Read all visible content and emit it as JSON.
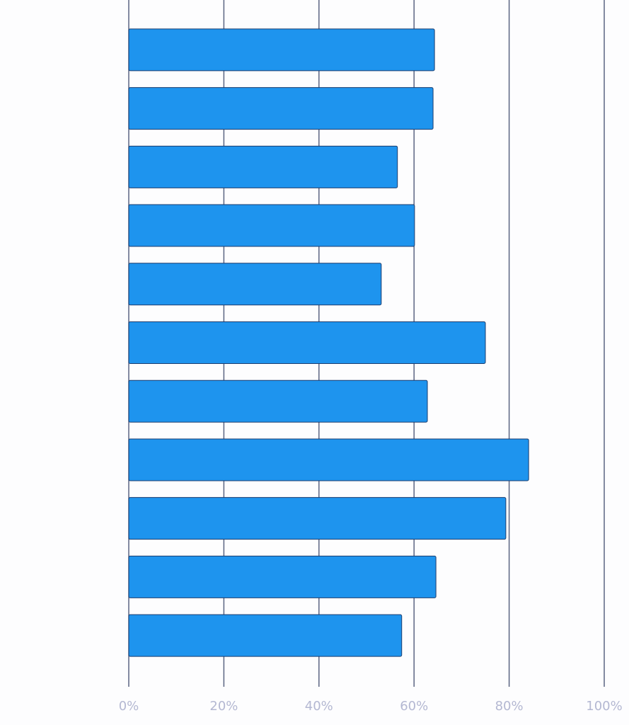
{
  "chart_data": {
    "type": "bar",
    "orientation": "horizontal",
    "categories": [
      null,
      null,
      null,
      null,
      null,
      null,
      null,
      null,
      null,
      null,
      null
    ],
    "values": [
      64.3,
      64.0,
      56.5,
      60.1,
      53.1,
      75.0,
      62.8,
      84.1,
      79.3,
      64.6,
      57.4
    ],
    "color": "#1e94ee",
    "xlim": [
      0,
      100
    ],
    "xticks": [
      {
        "value": 0,
        "label": "0%"
      },
      {
        "value": 20,
        "label": "20%"
      },
      {
        "value": 40,
        "label": "40%"
      },
      {
        "value": 60,
        "label": "60%"
      },
      {
        "value": 80,
        "label": "80%"
      },
      {
        "value": 100,
        "label": "100%"
      }
    ],
    "grid": true
  }
}
